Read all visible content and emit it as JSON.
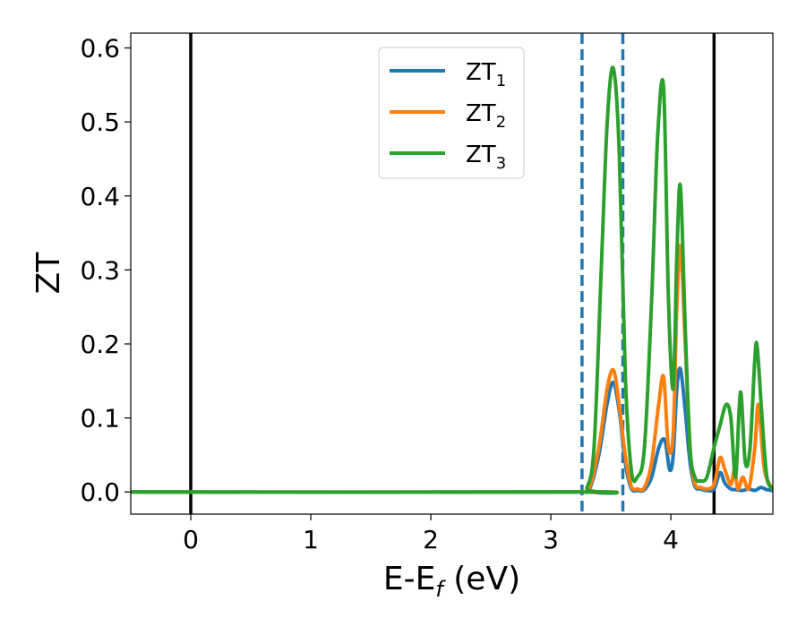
{
  "chart_data": {
    "type": "line",
    "xlabel": "E-E",
    "xlabel_sub": "f",
    "xlabel_unit": " (eV)",
    "ylabel": "ZT",
    "xlim": [
      -0.5,
      4.85
    ],
    "ylim": [
      -0.03,
      0.62
    ],
    "xticks": [
      0,
      1,
      2,
      3,
      4
    ],
    "xtick_labels": [
      "0",
      "1",
      "2",
      "3",
      "4"
    ],
    "yticks": [
      0.0,
      0.1,
      0.2,
      0.3,
      0.4,
      0.5,
      0.6
    ],
    "ytick_labels": [
      "0.0",
      "0.1",
      "0.2",
      "0.3",
      "0.4",
      "0.5",
      "0.6"
    ],
    "legend_position": "top-center",
    "vlines": [
      {
        "x": 0.0,
        "style": "solid",
        "color": "#000000"
      },
      {
        "x": 4.36,
        "style": "solid",
        "color": "#000000"
      },
      {
        "x": 3.26,
        "style": "dashed",
        "color": "#1f77b4"
      },
      {
        "x": 3.6,
        "style": "dashed",
        "color": "#1f77b4"
      }
    ],
    "series": [
      {
        "name": "ZT",
        "name_sub": "1",
        "color": "#1f77b4",
        "x": [
          -0.5,
          3.26,
          3.32,
          3.4,
          3.47,
          3.52,
          3.57,
          3.62,
          3.67,
          3.72,
          3.78,
          3.84,
          3.9,
          3.95,
          3.99,
          4.02,
          4.05,
          4.08,
          4.12,
          4.16,
          4.2,
          4.25,
          4.3,
          4.36,
          4.41,
          4.45,
          4.5,
          4.55,
          4.6,
          4.65,
          4.7,
          4.75,
          4.8,
          4.85
        ],
        "y": [
          0.0,
          0.0,
          0.003,
          0.05,
          0.12,
          0.148,
          0.11,
          0.04,
          0.005,
          0.002,
          0.003,
          0.02,
          0.06,
          0.07,
          0.03,
          0.05,
          0.14,
          0.166,
          0.11,
          0.04,
          0.008,
          0.004,
          0.002,
          0.004,
          0.026,
          0.012,
          0.004,
          0.003,
          0.002,
          0.004,
          0.002,
          0.006,
          0.003,
          0.002
        ]
      },
      {
        "name": "ZT",
        "name_sub": "2",
        "color": "#ff7f0e",
        "x": [
          -0.5,
          3.26,
          3.32,
          3.4,
          3.47,
          3.52,
          3.56,
          3.62,
          3.67,
          3.72,
          3.78,
          3.84,
          3.9,
          3.94,
          3.98,
          4.02,
          4.05,
          4.08,
          4.12,
          4.16,
          4.2,
          4.25,
          4.3,
          4.36,
          4.41,
          4.45,
          4.5,
          4.53,
          4.56,
          4.6,
          4.65,
          4.7,
          4.73,
          4.78,
          4.85
        ],
        "y": [
          0.0,
          0.0,
          0.005,
          0.06,
          0.14,
          0.165,
          0.13,
          0.05,
          0.008,
          0.004,
          0.006,
          0.04,
          0.12,
          0.155,
          0.06,
          0.08,
          0.25,
          0.332,
          0.2,
          0.06,
          0.012,
          0.006,
          0.004,
          0.01,
          0.046,
          0.03,
          0.01,
          0.03,
          0.004,
          0.02,
          0.005,
          0.06,
          0.118,
          0.03,
          0.004
        ]
      },
      {
        "name": "ZT",
        "name_sub": "3",
        "color": "#2ca02c",
        "x": [
          -0.5,
          3.26,
          3.3,
          3.36,
          3.42,
          3.47,
          3.52,
          3.57,
          3.62,
          3.67,
          3.72,
          3.78,
          3.84,
          3.89,
          3.94,
          3.98,
          4.02,
          4.05,
          4.08,
          4.12,
          4.16,
          4.2,
          4.25,
          4.3,
          4.36,
          4.41,
          4.46,
          4.5,
          4.54,
          4.58,
          4.62,
          4.66,
          4.7,
          4.72,
          4.76,
          4.8,
          4.85
        ],
        "y": [
          0.0,
          0.0,
          0.005,
          0.06,
          0.3,
          0.5,
          0.573,
          0.46,
          0.16,
          0.03,
          0.02,
          0.06,
          0.26,
          0.48,
          0.545,
          0.26,
          0.14,
          0.32,
          0.413,
          0.22,
          0.06,
          0.02,
          0.015,
          0.02,
          0.06,
          0.09,
          0.118,
          0.1,
          0.02,
          0.135,
          0.04,
          0.06,
          0.18,
          0.195,
          0.1,
          0.02,
          0.004
        ]
      }
    ]
  }
}
